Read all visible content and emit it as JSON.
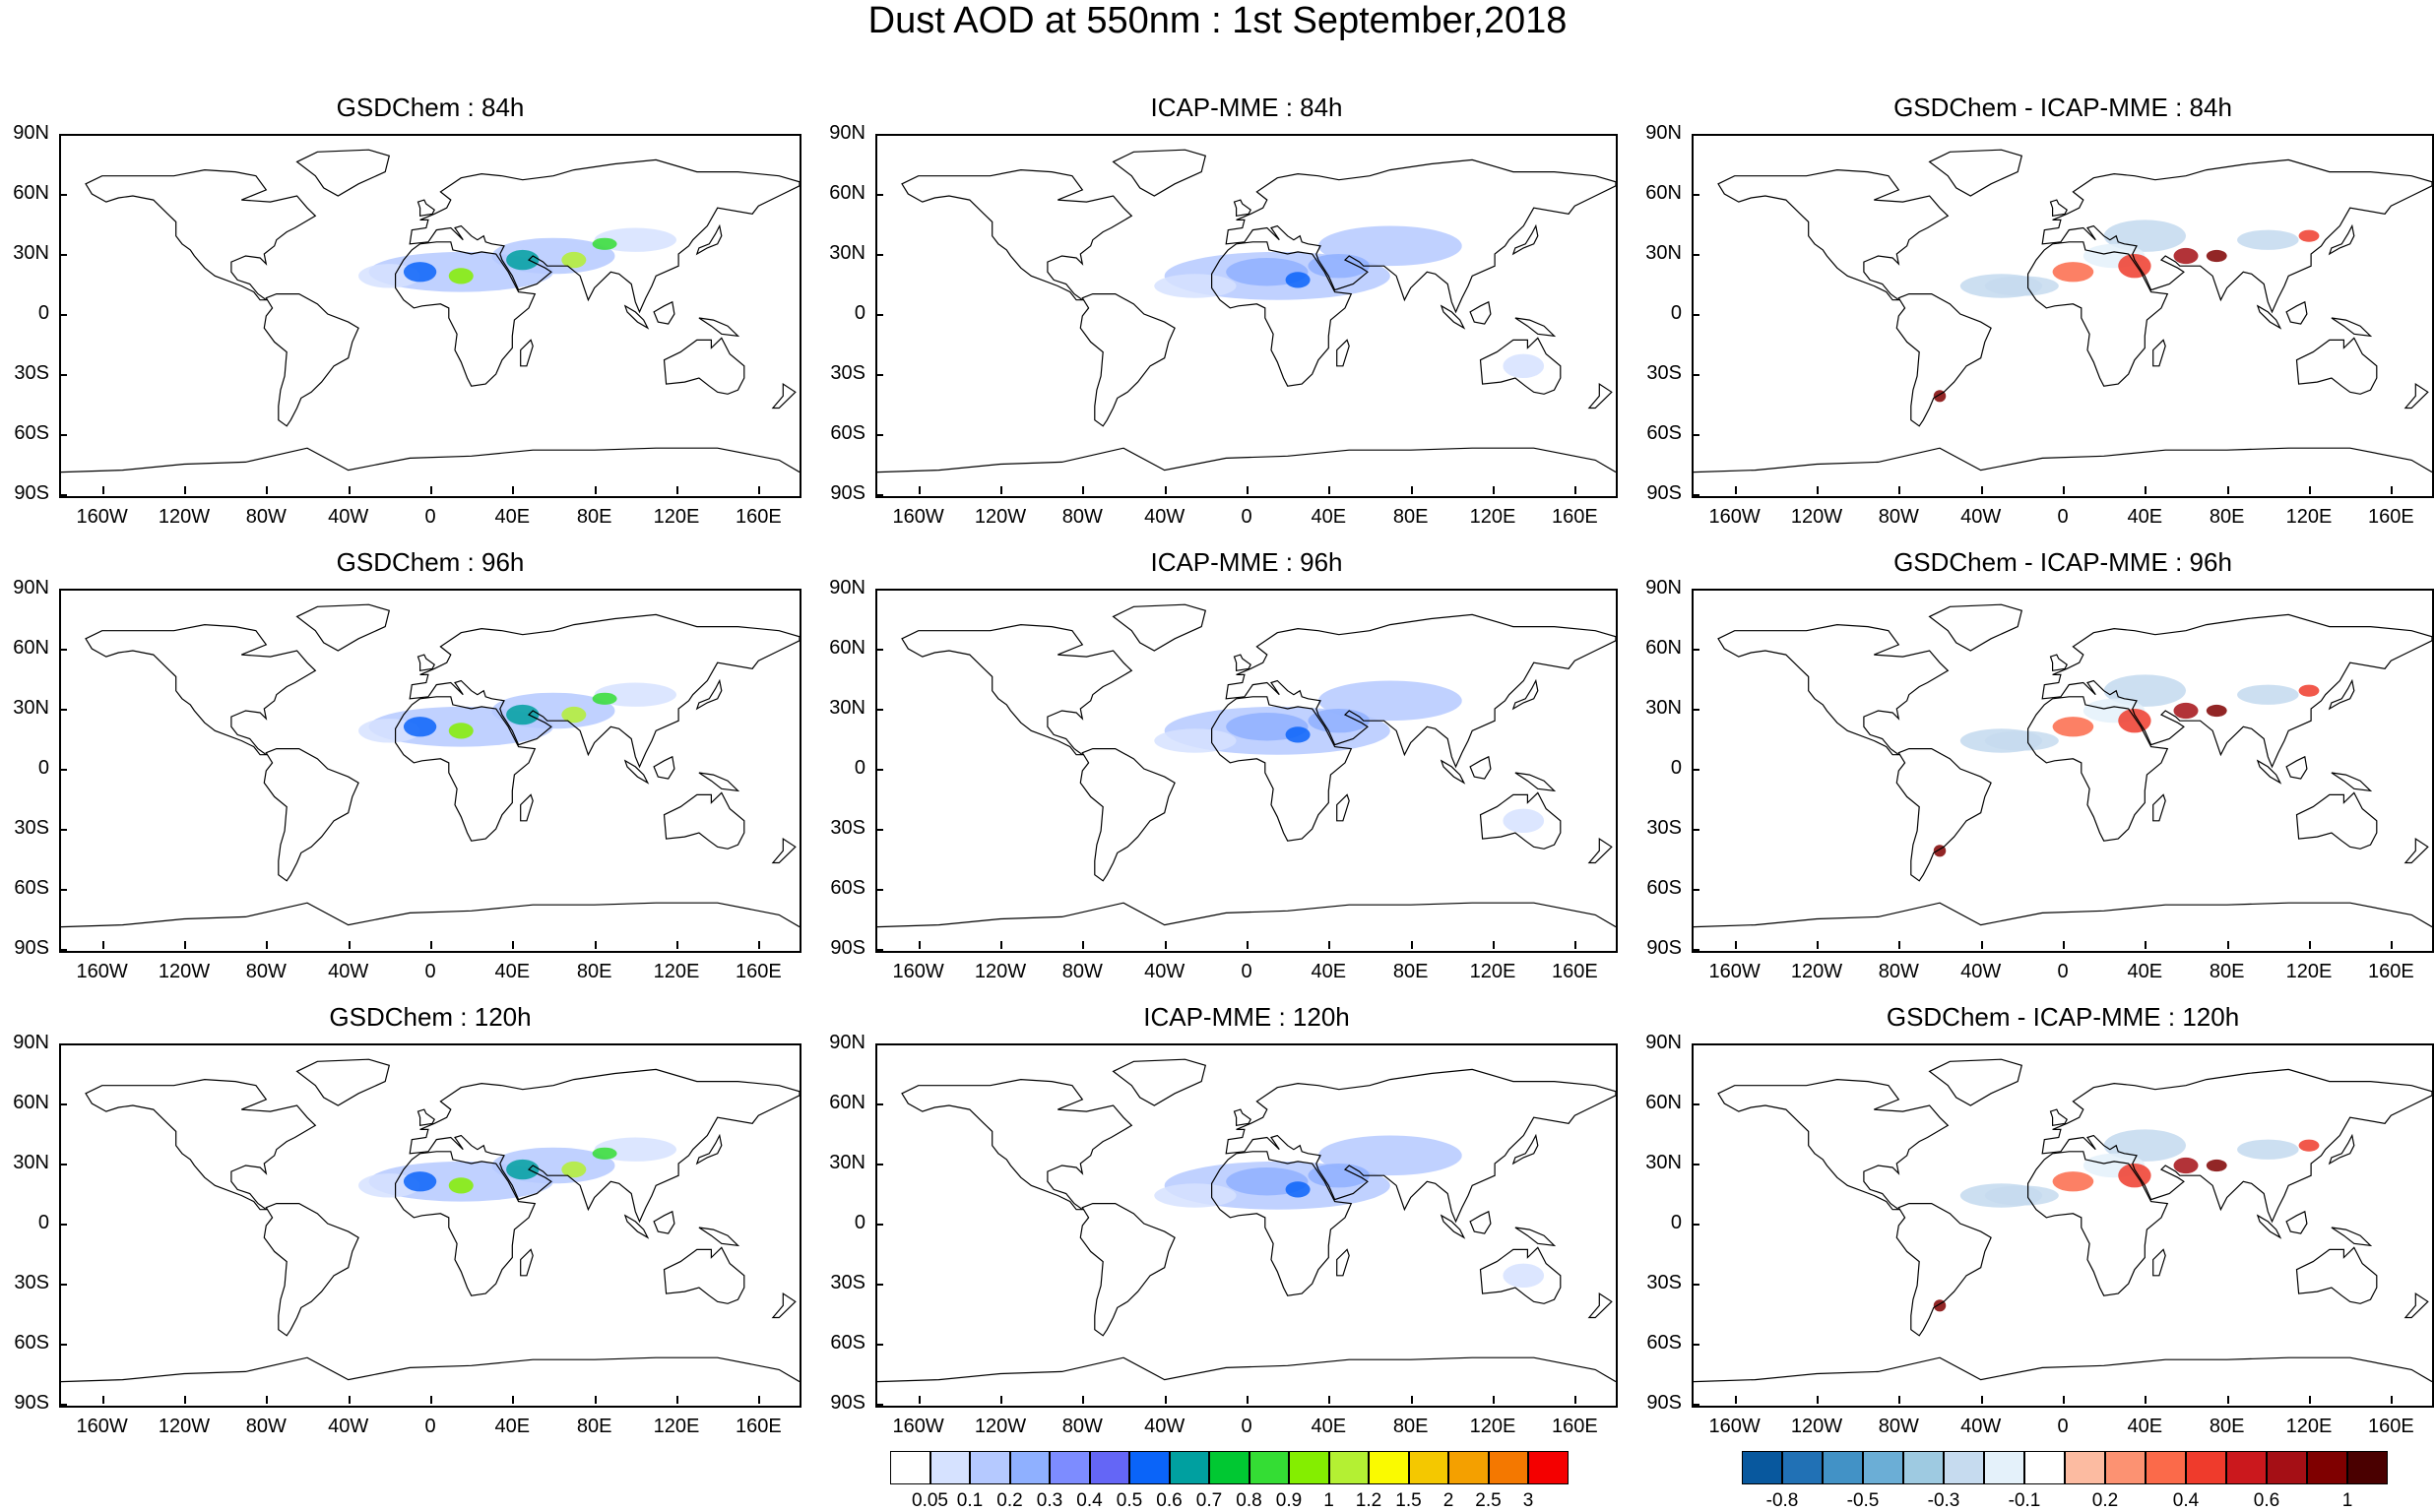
{
  "title": "Dust AOD at 550nm : 1st September,2018",
  "chart_data": {
    "type": "heatmap",
    "lat_ticks": [
      "90N",
      "60N",
      "30N",
      "0",
      "30S",
      "60S",
      "90S"
    ],
    "lon_ticks": [
      "160W",
      "120W",
      "80W",
      "40W",
      "0",
      "40E",
      "80E",
      "120E",
      "160E"
    ],
    "panels": [
      {
        "title": "GSDChem : 84h",
        "kind": "aod",
        "lead_h": 84,
        "model": "GSDChem"
      },
      {
        "title": "ICAP-MME : 84h",
        "kind": "aod",
        "lead_h": 84,
        "model": "ICAP-MME"
      },
      {
        "title": "GSDChem - ICAP-MME : 84h",
        "kind": "diff",
        "lead_h": 84,
        "model": "GSDChem - ICAP-MME"
      },
      {
        "title": "GSDChem : 96h",
        "kind": "aod",
        "lead_h": 96,
        "model": "GSDChem"
      },
      {
        "title": "ICAP-MME : 96h",
        "kind": "aod",
        "lead_h": 96,
        "model": "ICAP-MME"
      },
      {
        "title": "GSDChem - ICAP-MME : 96h",
        "kind": "diff",
        "lead_h": 96,
        "model": "GSDChem - ICAP-MME"
      },
      {
        "title": "GSDChem : 120h",
        "kind": "aod",
        "lead_h": 120,
        "model": "GSDChem"
      },
      {
        "title": "ICAP-MME : 120h",
        "kind": "aod",
        "lead_h": 120,
        "model": "ICAP-MME"
      },
      {
        "title": "GSDChem - ICAP-MME : 120h",
        "kind": "diff",
        "lead_h": 120,
        "model": "GSDChem - ICAP-MME"
      }
    ],
    "aod_colorbar": {
      "labels": [
        "0.05",
        "0.1",
        "0.2",
        "0.3",
        "0.4",
        "0.5",
        "0.6",
        "0.7",
        "0.8",
        "0.9",
        "1",
        "1.2",
        "1.5",
        "2",
        "2.5",
        "3"
      ],
      "colors": [
        "#ffffff",
        "#d6e2ff",
        "#b5c9ff",
        "#8fb0ff",
        "#7d8cff",
        "#6466f6",
        "#0a64f9",
        "#00a0a0",
        "#00c832",
        "#34dd34",
        "#84ee00",
        "#b4f033",
        "#fafa00",
        "#f4c800",
        "#f4a000",
        "#f47800",
        "#f40000"
      ]
    },
    "diff_colorbar": {
      "labels": [
        "-0.8",
        "-0.5",
        "-0.3",
        "-0.1",
        "0.2",
        "0.4",
        "0.6",
        "1"
      ],
      "colors": [
        "#08589e",
        "#2171b5",
        "#4292c6",
        "#6baed6",
        "#9ecae1",
        "#c6dbef",
        "#e4f1fa",
        "#ffffff",
        "#fcbba1",
        "#fc9272",
        "#fb6a4a",
        "#ef3b2c",
        "#cb181d",
        "#a50f15",
        "#7f0000",
        "#4a0000"
      ]
    }
  }
}
